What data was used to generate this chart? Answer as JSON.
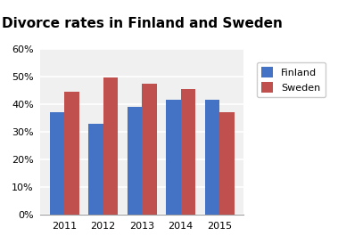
{
  "title": "Divorce rates in Finland and Sweden",
  "years": [
    2011,
    2012,
    2013,
    2014,
    2015
  ],
  "finland": [
    37,
    33,
    39,
    41.5,
    41.5
  ],
  "sweden": [
    44.5,
    49.5,
    47.5,
    45.5,
    37
  ],
  "finland_color": "#4472C4",
  "sweden_color": "#C0504D",
  "ylim": [
    0,
    60
  ],
  "yticks": [
    0,
    10,
    20,
    30,
    40,
    50,
    60
  ],
  "bar_width": 0.38,
  "legend_labels": [
    "Finland",
    "Sweden"
  ],
  "background_color": "#FFFFFF",
  "plot_bg_color": "#F0F0F0",
  "title_fontsize": 11,
  "tick_fontsize": 8,
  "legend_fontsize": 8,
  "grid_color": "#FFFFFF",
  "grid_linewidth": 1.2
}
